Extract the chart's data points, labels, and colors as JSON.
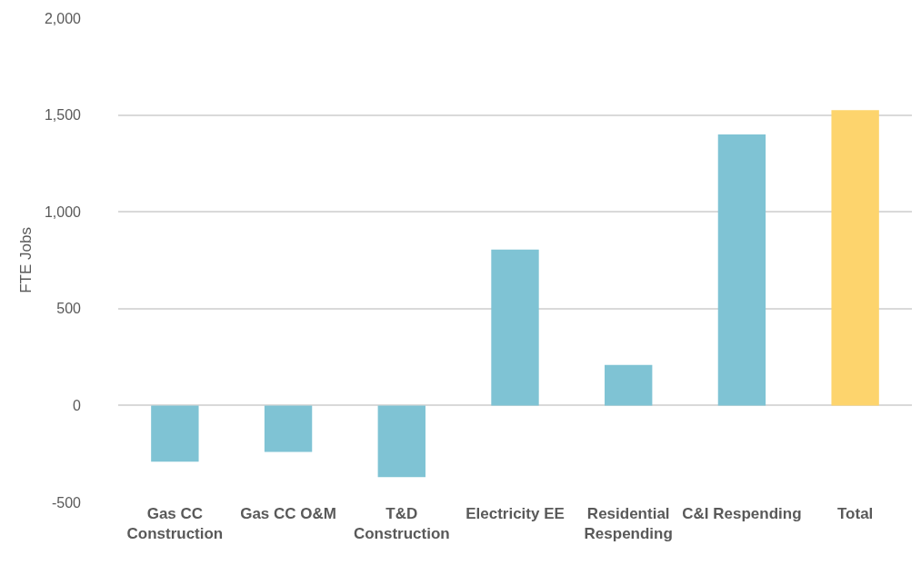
{
  "chart_data": {
    "type": "bar",
    "ylabel": "FTE Jobs",
    "categories": [
      "Gas CC Construction",
      "Gas CC O&M",
      "T&D Construction",
      "Electricity EE",
      "Residential Respending",
      "C&I Respending",
      "Total"
    ],
    "values": [
      -290,
      -240,
      -370,
      805,
      210,
      1400,
      1525
    ],
    "colors": [
      "#7fc3d4",
      "#7fc3d4",
      "#7fc3d4",
      "#7fc3d4",
      "#7fc3d4",
      "#7fc3d4",
      "#fdd46d"
    ],
    "ylim": [
      -500,
      2000
    ],
    "yticks": [
      {
        "value": -500,
        "label": "-500"
      },
      0,
      500,
      {
        "value": 1000,
        "label": "1,000"
      },
      {
        "value": 1500,
        "label": "1,500"
      },
      {
        "value": 2000,
        "label": "2,000"
      }
    ],
    "grid": "y"
  }
}
